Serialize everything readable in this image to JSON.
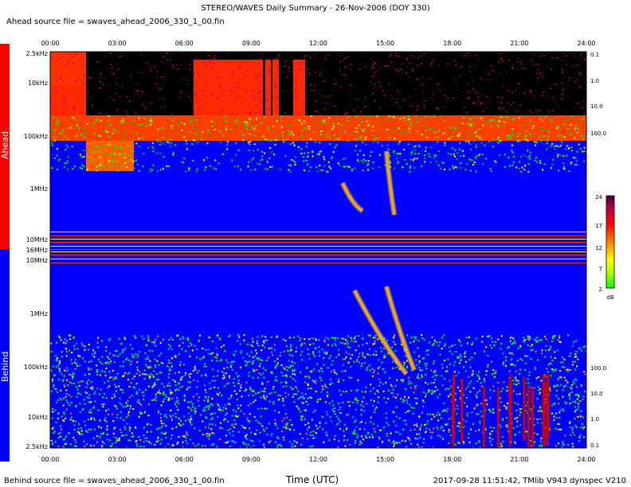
{
  "title": "STEREO/WAVES Daily Summary - 26-Nov-2006 (DOY 330)",
  "ahead_file_label": "Ahead source file = swaves_ahead_2006_330_1_00.fin",
  "behind_file_label": "Behind source file = swaves_ahead_2006_330_1_00.fin",
  "footer_right": "2017-09-28 11:51:42, TMlib V943 dynspec V210",
  "colors": {
    "ahead_bar": "#ff0000",
    "behind_bar": "#0000ff",
    "background_level": "#0000ff"
  },
  "chart_data": {
    "type": "heatmap",
    "xlabel": "Time (UTC)",
    "x_ticks": [
      "00:00",
      "03:00",
      "06:00",
      "09:00",
      "12:00",
      "15:00",
      "18:00",
      "21:00",
      "24:00"
    ],
    "xlim": [
      "00:00",
      "24:00"
    ],
    "panels": [
      {
        "name": "Ahead",
        "freq_ticks": [
          "2.5kHz",
          "10kHz",
          "100kHz",
          "1MHz",
          "10MHz",
          "16MHz"
        ],
        "right_ticks": [
          "0.1",
          "1.0",
          "10.0",
          "100.0"
        ]
      },
      {
        "name": "Behind",
        "freq_ticks": [
          "10MHz",
          "1MHz",
          "100kHz",
          "10kHz",
          "2.5kHz"
        ],
        "right_ticks": [
          "100.0",
          "10.0",
          "1.0",
          "0.1"
        ]
      }
    ],
    "colorbar": {
      "ticks": [
        "24",
        "17",
        "12",
        "7",
        "2"
      ],
      "unit": "dB",
      "range": [
        2,
        24
      ]
    }
  }
}
